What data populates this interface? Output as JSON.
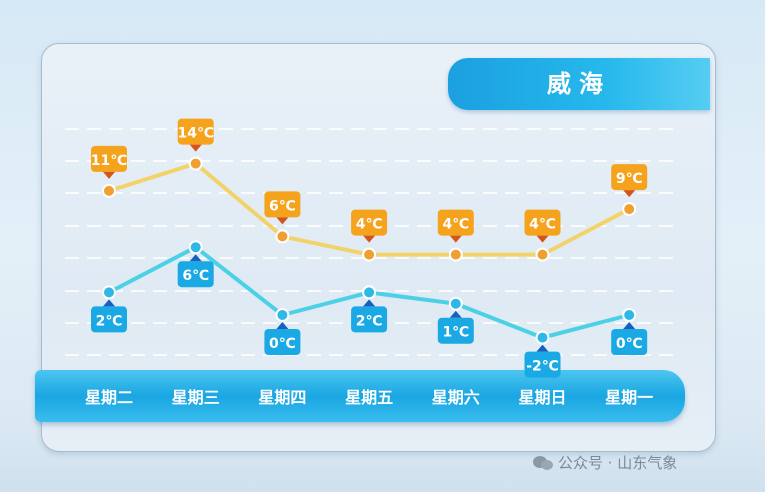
{
  "title": "威海",
  "chart_data": {
    "type": "line",
    "title": "威海",
    "categories": [
      "星期二",
      "星期三",
      "星期四",
      "星期五",
      "星期六",
      "星期日",
      "星期一"
    ],
    "series": [
      {
        "values": [
          11,
          14,
          6,
          4,
          4,
          4,
          9
        ],
        "color": "#f5a31c",
        "line_color": "#f2d36a"
      },
      {
        "values": [
          2,
          6,
          0,
          2,
          1,
          -2,
          0
        ],
        "color": "#1aa9e4",
        "line_color": "#4cd0e6"
      }
    ],
    "unit": "℃",
    "grid": "dashed horizontal"
  },
  "watermark": "公众号 · 山东气象"
}
